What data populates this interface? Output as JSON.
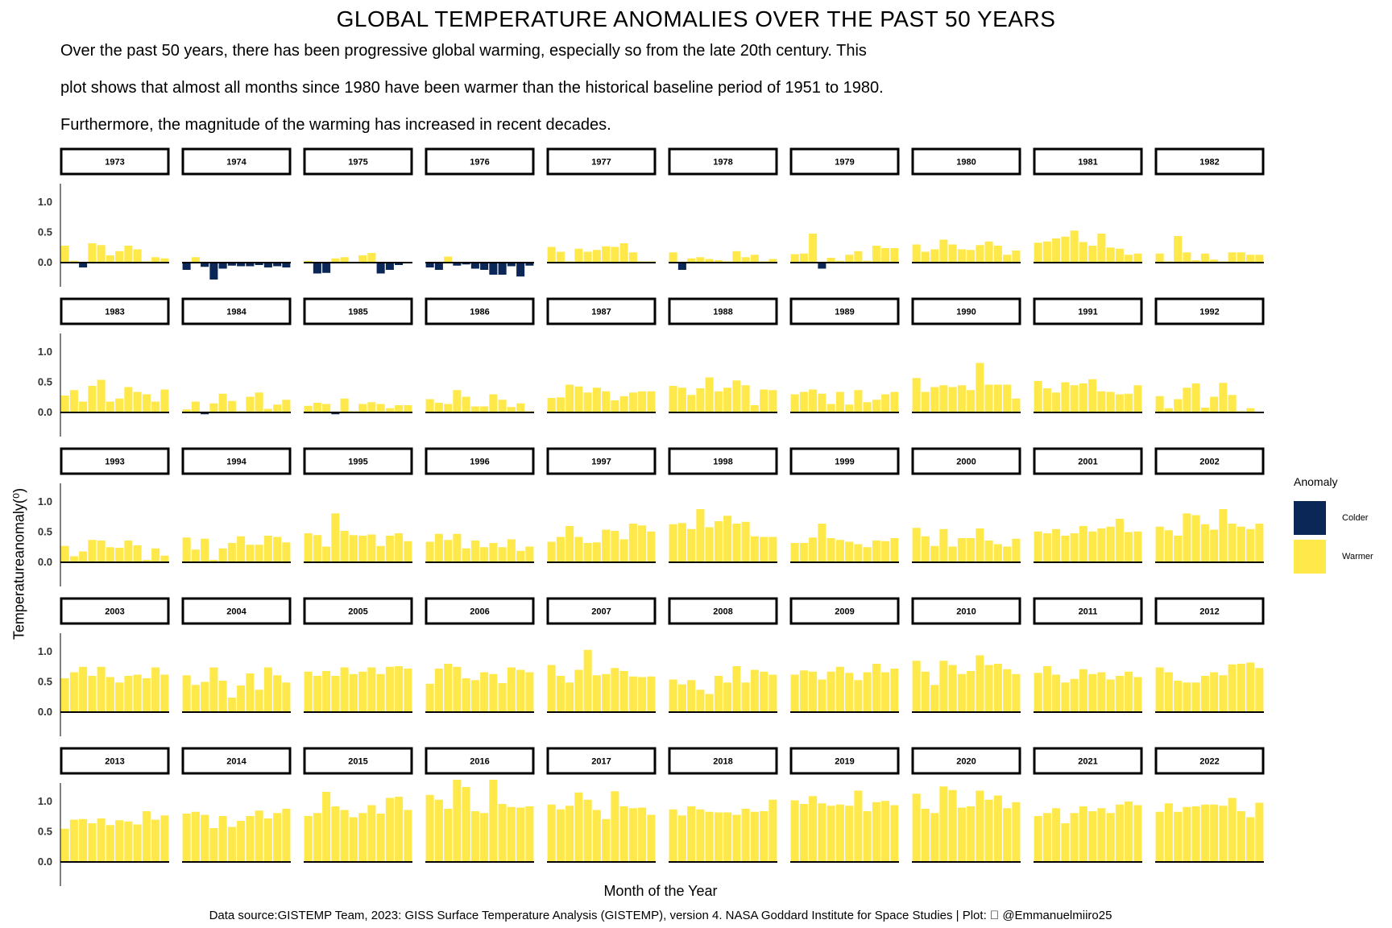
{
  "title": "GLOBAL TEMPERATURE ANOMALIES OVER THE PAST 50 YEARS",
  "subtitle_lines": [
    "Over the past 50 years, there has been progressive global warming, especially so from the late 20th century. This",
    "plot shows that almost all months since 1980 have been warmer than the historical baseline period of 1951 to 1980.",
    "Furthermore, the magnitude of the warming has increased in recent decades."
  ],
  "caption": "Data source:GISTEMP Team, 2023: GISS Surface Temperature Analysis (GISTEMP), version 4. NASA Goddard Institute for Space Studies | Plot:   @Emmanuelmiiro25",
  "legend": {
    "title": "Anomaly",
    "items": [
      {
        "label": "Colder",
        "color": "#0b2757"
      },
      {
        "label": "Warmer",
        "color": "#ffe94a"
      }
    ]
  },
  "chart_data": {
    "type": "bar",
    "xlabel": "Month of the Year",
    "ylabel": "Temperatureanomaly(⁰)",
    "yticks": [
      "0.0",
      "0.5",
      "1.0"
    ],
    "ylim": [
      -0.35,
      1.4
    ],
    "colors": {
      "colder": "#0b2757",
      "warmer": "#ffe94a"
    },
    "facets": [
      {
        "year": "1973",
        "values": [
          0.28,
          0.03,
          -0.08,
          0.32,
          0.29,
          0.12,
          0.19,
          0.28,
          0.22,
          0.02,
          0.09,
          0.07
        ]
      },
      {
        "year": "1974",
        "values": [
          -0.12,
          0.09,
          -0.07,
          -0.28,
          -0.1,
          -0.05,
          -0.06,
          -0.06,
          -0.04,
          -0.08,
          -0.06,
          -0.08
        ]
      },
      {
        "year": "1975",
        "values": [
          0.03,
          -0.18,
          -0.17,
          0.07,
          0.09,
          0.01,
          0.12,
          0.16,
          -0.18,
          -0.12,
          -0.04,
          0.0
        ]
      },
      {
        "year": "1976",
        "values": [
          -0.08,
          -0.12,
          0.1,
          -0.05,
          -0.03,
          -0.1,
          -0.12,
          -0.2,
          -0.2,
          -0.06,
          -0.23,
          -0.05
        ]
      },
      {
        "year": "1977",
        "values": [
          0.26,
          0.18,
          0.02,
          0.23,
          0.18,
          0.21,
          0.27,
          0.26,
          0.32,
          0.17,
          0.02,
          0.02
        ]
      },
      {
        "year": "1978",
        "values": [
          0.17,
          -0.12,
          0.07,
          0.09,
          0.06,
          0.04,
          0.02,
          0.19,
          0.09,
          0.13,
          0.02,
          0.06
        ]
      },
      {
        "year": "1979",
        "values": [
          0.14,
          0.15,
          0.48,
          -0.1,
          0.08,
          0.03,
          0.13,
          0.19,
          0.03,
          0.28,
          0.24,
          0.24
        ]
      },
      {
        "year": "1980",
        "values": [
          0.3,
          0.18,
          0.22,
          0.38,
          0.3,
          0.22,
          0.21,
          0.29,
          0.35,
          0.28,
          0.13,
          0.2
        ]
      },
      {
        "year": "1981",
        "values": [
          0.33,
          0.35,
          0.4,
          0.43,
          0.53,
          0.34,
          0.28,
          0.48,
          0.25,
          0.23,
          0.13,
          0.15
        ]
      },
      {
        "year": "1982",
        "values": [
          0.15,
          0.02,
          0.44,
          0.17,
          0.04,
          0.15,
          0.05,
          0.02,
          0.17,
          0.17,
          0.13,
          0.13
        ]
      },
      {
        "year": "1983",
        "values": [
          0.28,
          0.37,
          0.18,
          0.44,
          0.54,
          0.18,
          0.23,
          0.42,
          0.34,
          0.3,
          0.18,
          0.38
        ]
      },
      {
        "year": "1984",
        "values": [
          0.05,
          0.18,
          -0.03,
          0.15,
          0.31,
          0.19,
          0.02,
          0.26,
          0.33,
          0.06,
          0.13,
          0.21
        ]
      },
      {
        "year": "1985",
        "values": [
          0.11,
          0.16,
          0.14,
          -0.03,
          0.23,
          0.02,
          0.14,
          0.17,
          0.14,
          0.07,
          0.12,
          0.12
        ]
      },
      {
        "year": "1986",
        "values": [
          0.22,
          0.16,
          0.14,
          0.37,
          0.26,
          0.1,
          0.1,
          0.3,
          0.21,
          0.09,
          0.15,
          0.02
        ]
      },
      {
        "year": "1987",
        "values": [
          0.24,
          0.25,
          0.46,
          0.43,
          0.33,
          0.41,
          0.35,
          0.2,
          0.27,
          0.33,
          0.35,
          0.35
        ]
      },
      {
        "year": "1988",
        "values": [
          0.44,
          0.41,
          0.29,
          0.4,
          0.58,
          0.35,
          0.41,
          0.53,
          0.45,
          0.12,
          0.38,
          0.37
        ]
      },
      {
        "year": "1989",
        "values": [
          0.3,
          0.34,
          0.38,
          0.31,
          0.14,
          0.34,
          0.13,
          0.37,
          0.17,
          0.21,
          0.3,
          0.34
        ]
      },
      {
        "year": "1990",
        "values": [
          0.57,
          0.34,
          0.42,
          0.45,
          0.42,
          0.45,
          0.37,
          0.82,
          0.46,
          0.46,
          0.46,
          0.23
        ]
      },
      {
        "year": "1991",
        "values": [
          0.52,
          0.4,
          0.33,
          0.5,
          0.45,
          0.48,
          0.55,
          0.35,
          0.34,
          0.3,
          0.31,
          0.45
        ]
      },
      {
        "year": "1992",
        "values": [
          0.27,
          0.07,
          0.22,
          0.41,
          0.48,
          0.08,
          0.26,
          0.49,
          0.29,
          0.02,
          0.07,
          0.0
        ]
      },
      {
        "year": "1993",
        "values": [
          0.27,
          0.1,
          0.18,
          0.37,
          0.36,
          0.25,
          0.24,
          0.36,
          0.28,
          0.04,
          0.23,
          0.11
        ]
      },
      {
        "year": "1994",
        "values": [
          0.41,
          0.21,
          0.39,
          0.04,
          0.23,
          0.32,
          0.43,
          0.29,
          0.29,
          0.44,
          0.42,
          0.33
        ]
      },
      {
        "year": "1995",
        "values": [
          0.48,
          0.45,
          0.26,
          0.81,
          0.52,
          0.45,
          0.44,
          0.46,
          0.27,
          0.44,
          0.48,
          0.35
        ]
      },
      {
        "year": "1996",
        "values": [
          0.34,
          0.47,
          0.37,
          0.47,
          0.23,
          0.36,
          0.25,
          0.32,
          0.25,
          0.38,
          0.19,
          0.26
        ]
      },
      {
        "year": "1997",
        "values": [
          0.34,
          0.42,
          0.6,
          0.42,
          0.32,
          0.33,
          0.54,
          0.52,
          0.38,
          0.64,
          0.61,
          0.51
        ]
      },
      {
        "year": "1998",
        "values": [
          0.63,
          0.65,
          0.55,
          0.88,
          0.58,
          0.68,
          0.77,
          0.64,
          0.67,
          0.43,
          0.42,
          0.42
        ]
      },
      {
        "year": "1999",
        "values": [
          0.32,
          0.32,
          0.41,
          0.64,
          0.4,
          0.37,
          0.34,
          0.3,
          0.25,
          0.36,
          0.35,
          0.4
        ]
      },
      {
        "year": "2000",
        "values": [
          0.57,
          0.43,
          0.27,
          0.55,
          0.26,
          0.4,
          0.4,
          0.56,
          0.36,
          0.3,
          0.26,
          0.39
        ]
      },
      {
        "year": "2001",
        "values": [
          0.51,
          0.48,
          0.55,
          0.44,
          0.48,
          0.6,
          0.51,
          0.56,
          0.59,
          0.72,
          0.5,
          0.51
        ]
      },
      {
        "year": "2002",
        "values": [
          0.59,
          0.53,
          0.44,
          0.81,
          0.78,
          0.63,
          0.54,
          0.88,
          0.64,
          0.59,
          0.55,
          0.64
        ]
      },
      {
        "year": "2003",
        "values": [
          0.56,
          0.66,
          0.75,
          0.6,
          0.75,
          0.58,
          0.49,
          0.6,
          0.62,
          0.56,
          0.74,
          0.62
        ]
      },
      {
        "year": "2004",
        "values": [
          0.61,
          0.45,
          0.5,
          0.74,
          0.52,
          0.24,
          0.44,
          0.64,
          0.37,
          0.74,
          0.61,
          0.49
        ]
      },
      {
        "year": "2005",
        "values": [
          0.67,
          0.6,
          0.68,
          0.6,
          0.74,
          0.63,
          0.67,
          0.74,
          0.63,
          0.75,
          0.76,
          0.72
        ]
      },
      {
        "year": "2006",
        "values": [
          0.47,
          0.72,
          0.8,
          0.75,
          0.56,
          0.53,
          0.66,
          0.63,
          0.48,
          0.74,
          0.7,
          0.66
        ]
      },
      {
        "year": "2007",
        "values": [
          0.78,
          0.6,
          0.49,
          0.7,
          1.03,
          0.61,
          0.63,
          0.73,
          0.68,
          0.59,
          0.58,
          0.59
        ]
      },
      {
        "year": "2008",
        "values": [
          0.54,
          0.46,
          0.53,
          0.37,
          0.3,
          0.6,
          0.49,
          0.76,
          0.49,
          0.7,
          0.67,
          0.62
        ]
      },
      {
        "year": "2009",
        "values": [
          0.62,
          0.69,
          0.67,
          0.54,
          0.67,
          0.75,
          0.65,
          0.53,
          0.66,
          0.8,
          0.66,
          0.72
        ]
      },
      {
        "year": "2010",
        "values": [
          0.85,
          0.67,
          0.45,
          0.85,
          0.78,
          0.63,
          0.68,
          0.94,
          0.78,
          0.8,
          0.71,
          0.63
        ]
      },
      {
        "year": "2011",
        "values": [
          0.65,
          0.76,
          0.62,
          0.49,
          0.55,
          0.71,
          0.63,
          0.66,
          0.54,
          0.6,
          0.67,
          0.58
        ]
      },
      {
        "year": "2012",
        "values": [
          0.74,
          0.66,
          0.52,
          0.49,
          0.49,
          0.6,
          0.66,
          0.61,
          0.79,
          0.8,
          0.82,
          0.73
        ]
      },
      {
        "year": "2013",
        "values": [
          0.55,
          0.7,
          0.71,
          0.64,
          0.72,
          0.61,
          0.69,
          0.67,
          0.62,
          0.84,
          0.7,
          0.77
        ]
      },
      {
        "year": "2014",
        "values": [
          0.8,
          0.83,
          0.78,
          0.56,
          0.76,
          0.58,
          0.68,
          0.76,
          0.85,
          0.72,
          0.81,
          0.88
        ]
      },
      {
        "year": "2015",
        "values": [
          0.76,
          0.81,
          1.16,
          0.92,
          0.86,
          0.74,
          0.81,
          0.94,
          0.8,
          1.06,
          1.08,
          0.86
        ]
      },
      {
        "year": "2016",
        "values": [
          1.11,
          1.03,
          0.88,
          1.36,
          1.24,
          0.84,
          0.81,
          1.36,
          0.96,
          0.91,
          0.9,
          0.92
        ]
      },
      {
        "year": "2017",
        "values": [
          0.95,
          0.87,
          0.93,
          1.15,
          1.03,
          0.86,
          0.71,
          1.17,
          0.92,
          0.89,
          0.9,
          0.78
        ]
      },
      {
        "year": "2018",
        "values": [
          0.87,
          0.77,
          0.92,
          0.87,
          0.83,
          0.82,
          0.82,
          0.78,
          0.88,
          0.83,
          0.84,
          1.03
        ]
      },
      {
        "year": "2019",
        "values": [
          1.02,
          0.96,
          1.09,
          0.97,
          0.93,
          0.95,
          0.93,
          1.18,
          0.84,
          0.99,
          1.01,
          0.94
        ]
      },
      {
        "year": "2020",
        "values": [
          1.13,
          0.88,
          0.81,
          1.25,
          1.19,
          0.9,
          0.92,
          1.18,
          1.03,
          1.1,
          0.89,
          0.99
        ]
      },
      {
        "year": "2021",
        "values": [
          0.76,
          0.81,
          0.89,
          0.64,
          0.81,
          0.92,
          0.84,
          0.89,
          0.81,
          0.95,
          1.0,
          0.94
        ]
      },
      {
        "year": "2022",
        "values": [
          0.83,
          0.97,
          0.83,
          0.91,
          0.92,
          0.95,
          0.95,
          0.93,
          1.06,
          0.84,
          0.74,
          0.98
        ]
      }
    ]
  }
}
